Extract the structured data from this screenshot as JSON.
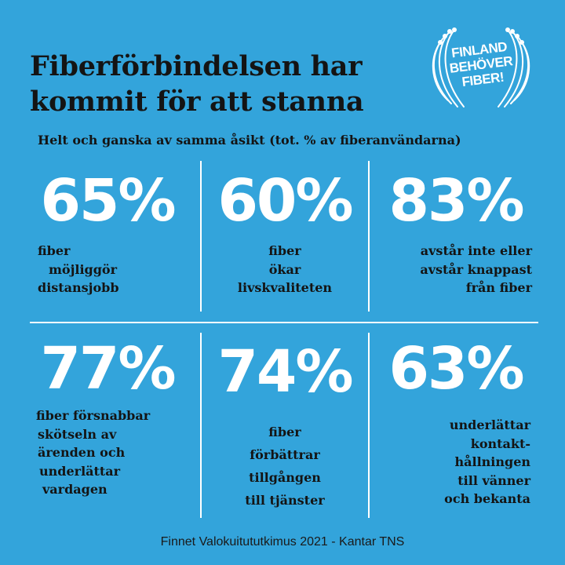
{
  "title_lines": [
    "Fiberförbindelsen har",
    "kommit för att stanna"
  ],
  "subtitle": "Helt och ganska av samma åsikt (tot. % av fiberanvändarna)",
  "logo": {
    "lines": [
      "FINLAND",
      "BEHÖVER",
      "FIBER!"
    ],
    "color": "#ffffff"
  },
  "stats": [
    {
      "value": "65%",
      "lines": [
        "fiber",
        "möjliggör",
        "distansjobb"
      ]
    },
    {
      "value": "60%",
      "lines": [
        "fiber",
        "ökar",
        "livskvaliteten"
      ]
    },
    {
      "value": "83%",
      "lines": [
        "avstår inte eller",
        "avstår knappast",
        "från fiber"
      ]
    },
    {
      "value": "77%",
      "lines": [
        "fiber försnabbar",
        "skötseln av",
        "ärenden och",
        "underlättar",
        "vardagen"
      ]
    },
    {
      "value": "74%",
      "lines": [
        "fiber",
        "förbättrar",
        "tillgången",
        "till tjänster"
      ]
    },
    {
      "value": "63%",
      "lines": [
        "underlättar",
        "kontakt-",
        "hållningen",
        "till vänner",
        "och bekanta"
      ]
    }
  ],
  "source": "Finnet Valokuitututkimus 2021 - Kantar TNS",
  "colors": {
    "background": "#33a4db",
    "text": "#141414",
    "accent": "#ffffff"
  }
}
